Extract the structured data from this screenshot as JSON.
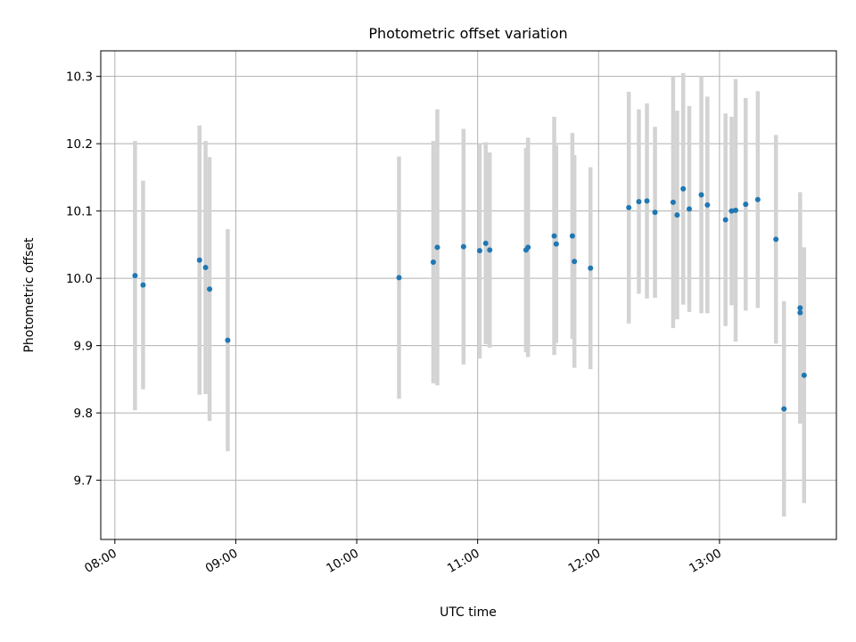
{
  "chart_data": {
    "type": "scatter",
    "title": "Photometric offset variation",
    "xlabel": "UTC time",
    "ylabel": "Photometric offset",
    "x_ticks": [
      "08:00",
      "09:00",
      "10:00",
      "11:00",
      "12:00",
      "13:00"
    ],
    "x_tick_times": [
      "08:00",
      "09:00",
      "10:00",
      "11:00",
      "12:00",
      "13:00"
    ],
    "xlim": [
      "07:53",
      "13:58"
    ],
    "y_ticks": [
      "9.7",
      "9.8",
      "9.9",
      "10.0",
      "10.1",
      "10.2",
      "10.3"
    ],
    "ylim": [
      9.612,
      10.338
    ],
    "grid": true,
    "marker_color": "#1f77b4",
    "errorbar_color": "#d3d3d3",
    "series": [
      {
        "points": [
          {
            "t": "08:10",
            "y": 10.004,
            "err": 0.2
          },
          {
            "t": "08:14",
            "y": 9.99,
            "err": 0.155
          },
          {
            "t": "08:42",
            "y": 10.027,
            "err": 0.2
          },
          {
            "t": "08:45",
            "y": 10.016,
            "err": 0.188
          },
          {
            "t": "08:47",
            "y": 9.984,
            "err": 0.196
          },
          {
            "t": "08:56",
            "y": 9.908,
            "err": 0.165
          },
          {
            "t": "10:21",
            "y": 10.001,
            "err": 0.18
          },
          {
            "t": "10:38",
            "y": 10.024,
            "err": 0.18
          },
          {
            "t": "10:40",
            "y": 10.046,
            "err": 0.205
          },
          {
            "t": "10:53",
            "y": 10.047,
            "err": 0.175
          },
          {
            "t": "11:01",
            "y": 10.041,
            "err": 0.16
          },
          {
            "t": "11:04",
            "y": 10.052,
            "err": 0.15
          },
          {
            "t": "11:06",
            "y": 10.042,
            "err": 0.145
          },
          {
            "t": "11:24",
            "y": 10.042,
            "err": 0.152
          },
          {
            "t": "11:25",
            "y": 10.046,
            "err": 0.163
          },
          {
            "t": "11:38",
            "y": 10.063,
            "err": 0.177
          },
          {
            "t": "11:39",
            "y": 10.051,
            "err": 0.147
          },
          {
            "t": "11:47",
            "y": 10.063,
            "err": 0.153
          },
          {
            "t": "11:48",
            "y": 10.025,
            "err": 0.158
          },
          {
            "t": "11:56",
            "y": 10.015,
            "err": 0.15
          },
          {
            "t": "12:15",
            "y": 10.105,
            "err": 0.172
          },
          {
            "t": "12:20",
            "y": 10.114,
            "err": 0.137
          },
          {
            "t": "12:24",
            "y": 10.115,
            "err": 0.145
          },
          {
            "t": "12:28",
            "y": 10.098,
            "err": 0.127
          },
          {
            "t": "12:37",
            "y": 10.113,
            "err": 0.187
          },
          {
            "t": "12:39",
            "y": 10.094,
            "err": 0.155
          },
          {
            "t": "12:42",
            "y": 10.133,
            "err": 0.172
          },
          {
            "t": "12:45",
            "y": 10.103,
            "err": 0.153
          },
          {
            "t": "12:51",
            "y": 10.124,
            "err": 0.176
          },
          {
            "t": "12:54",
            "y": 10.109,
            "err": 0.161
          },
          {
            "t": "13:03",
            "y": 10.087,
            "err": 0.158
          },
          {
            "t": "13:06",
            "y": 10.1,
            "err": 0.14
          },
          {
            "t": "13:08",
            "y": 10.101,
            "err": 0.195
          },
          {
            "t": "13:13",
            "y": 10.11,
            "err": 0.158
          },
          {
            "t": "13:19",
            "y": 10.117,
            "err": 0.161
          },
          {
            "t": "13:28",
            "y": 10.058,
            "err": 0.155
          },
          {
            "t": "13:32",
            "y": 9.806,
            "err": 0.16
          },
          {
            "t": "13:40",
            "y": 9.956,
            "err": 0.172
          },
          {
            "t": "13:40",
            "y": 9.949,
            "err": 0.165
          },
          {
            "t": "13:42",
            "y": 9.856,
            "err": 0.19
          }
        ]
      }
    ]
  }
}
